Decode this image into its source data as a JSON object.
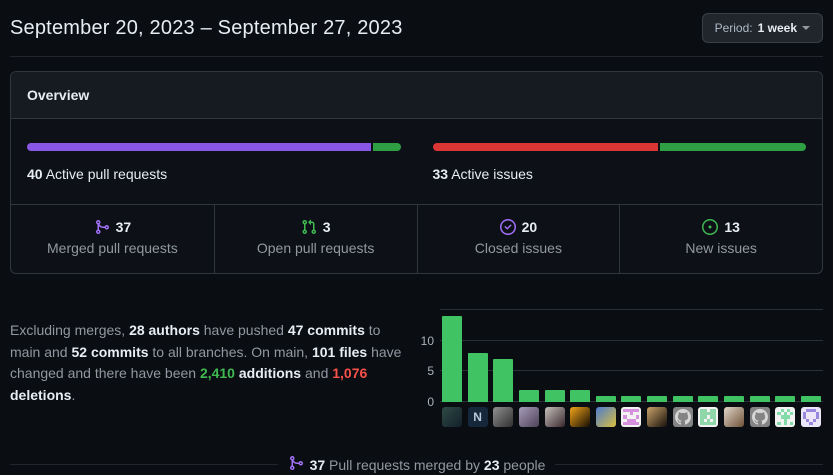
{
  "header": {
    "title": "September 20, 2023 – September 27, 2023",
    "period_button": {
      "label": "Period:",
      "value": "1 week"
    }
  },
  "overview": {
    "title": "Overview",
    "pull_requests": {
      "count": "40",
      "label": "Active pull requests",
      "segments": [
        {
          "name": "merged-pull-requests",
          "color": "#8957e5",
          "pct": 92.5
        },
        {
          "name": "open-pull-requests",
          "color": "#2ea043",
          "pct": 7.5
        }
      ]
    },
    "issues": {
      "count": "33",
      "label": "Active issues",
      "segments": [
        {
          "name": "closed-issues",
          "color": "#da3633",
          "pct": 60.6
        },
        {
          "name": "new-issues",
          "color": "#2ea043",
          "pct": 39.4
        }
      ]
    },
    "stats": [
      {
        "icon": "git-merge",
        "color": "#a371f7",
        "value": "37",
        "label": "Merged pull requests"
      },
      {
        "icon": "git-pull-request",
        "color": "#3fb950",
        "value": "3",
        "label": "Open pull requests"
      },
      {
        "icon": "issue-closed",
        "color": "#a371f7",
        "value": "20",
        "label": "Closed issues"
      },
      {
        "icon": "issue-opened",
        "color": "#3fb950",
        "value": "13",
        "label": "New issues"
      }
    ]
  },
  "summary": {
    "parts": [
      {
        "text": "Excluding merges, ",
        "style": "muted"
      },
      {
        "text": "28 authors",
        "style": "strong"
      },
      {
        "text": " have pushed ",
        "style": "muted"
      },
      {
        "text": "47 commits",
        "style": "strong"
      },
      {
        "text": " to main and ",
        "style": "muted"
      },
      {
        "text": "52 commits",
        "style": "strong"
      },
      {
        "text": " to all branches. On main, ",
        "style": "muted"
      },
      {
        "text": "101 files",
        "style": "strong"
      },
      {
        "text": " have changed and there have been ",
        "style": "muted"
      },
      {
        "text": "2,410",
        "style": "additions"
      },
      {
        "text": " ",
        "style": "muted"
      },
      {
        "text": "additions",
        "style": "strong"
      },
      {
        "text": " and ",
        "style": "muted"
      },
      {
        "text": "1,076",
        "style": "deletions"
      },
      {
        "text": " ",
        "style": "muted"
      },
      {
        "text": "deletions",
        "style": "strong"
      },
      {
        "text": ".",
        "style": "muted"
      }
    ]
  },
  "chart_data": {
    "type": "bar",
    "values": [
      14,
      8,
      7,
      2,
      2,
      2,
      1,
      1,
      1,
      1,
      1,
      1,
      1,
      1,
      1
    ],
    "bar_color": "#40c463",
    "ylim": [
      0,
      16
    ],
    "gridlines": [
      0,
      5,
      10,
      15
    ],
    "ytick_labels": [
      0,
      5,
      10
    ],
    "legend": "none",
    "categories": [
      "author-1",
      "author-2",
      "author-3",
      "author-4",
      "author-5",
      "author-6",
      "author-7",
      "author-8",
      "author-9",
      "author-10",
      "author-11",
      "author-12",
      "author-13",
      "author-14",
      "author-15"
    ],
    "avatars": [
      {
        "kind": "photo",
        "c1": "#2f4a45",
        "c2": "#13202a"
      },
      {
        "kind": "letter",
        "char": "N",
        "bg": "#15273b",
        "fg": "#b9c8d8"
      },
      {
        "kind": "photo",
        "c1": "#909090",
        "c2": "#303030"
      },
      {
        "kind": "photo",
        "c1": "#a79dbb",
        "c2": "#4e4258"
      },
      {
        "kind": "photo",
        "c1": "#c7c0bc",
        "c2": "#39282e"
      },
      {
        "kind": "photo",
        "c1": "#f0a41a",
        "c2": "#160d03"
      },
      {
        "kind": "photo",
        "c1": "#4d7bd1",
        "c2": "#d9c03c"
      },
      {
        "kind": "identicon",
        "bg": "#f2f2f2",
        "fg": "#d591dd"
      },
      {
        "kind": "photo",
        "c1": "#caa36b",
        "c2": "#17100a"
      },
      {
        "kind": "octocat",
        "bg": "#848484",
        "fg": "#d6d6d6"
      },
      {
        "kind": "identicon",
        "bg": "#f2f2f2",
        "fg": "#8fd6a9"
      },
      {
        "kind": "photo",
        "c1": "#e0d6c8",
        "c2": "#6f5138"
      },
      {
        "kind": "octocat",
        "bg": "#848484",
        "fg": "#d6d6d6"
      },
      {
        "kind": "identicon",
        "bg": "#f2f2f2",
        "fg": "#82dcaa"
      },
      {
        "kind": "identicon",
        "bg": "#ebe6f8",
        "fg": "#9a88df"
      }
    ]
  },
  "footer": {
    "icon": "git-merge",
    "icon_color": "#a371f7",
    "parts": [
      {
        "text": "37",
        "style": "strong"
      },
      {
        "text": " Pull requests merged by ",
        "style": "muted"
      },
      {
        "text": "23",
        "style": "strong"
      },
      {
        "text": " people",
        "style": "muted"
      }
    ]
  }
}
